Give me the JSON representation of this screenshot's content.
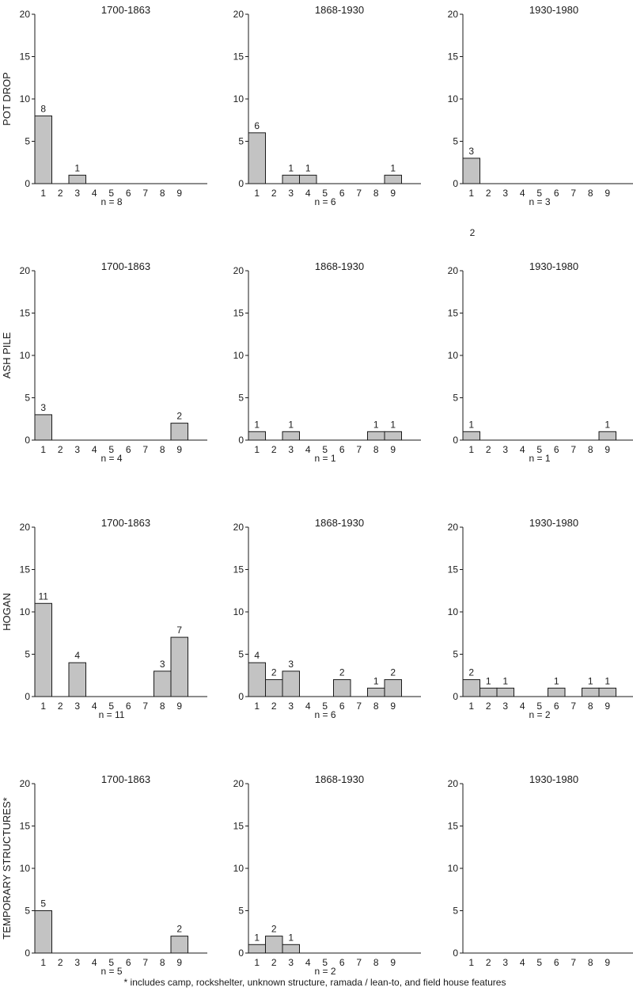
{
  "footnote": "* includes camp, rockshelter, unknown structure, ramada / lean-to, and field house features",
  "stray_label": "2",
  "colors": {
    "bar_fill": "#c3c3c3",
    "ink": "#1a1a1a"
  },
  "chart_data": [
    {
      "row_label": "POT DROP",
      "panels": [
        {
          "type": "bar",
          "title": "1700-1863",
          "categories": [
            "1",
            "2",
            "3",
            "4",
            "5",
            "6",
            "7",
            "8",
            "9"
          ],
          "values": [
            8,
            0,
            1,
            0,
            0,
            0,
            0,
            0,
            0
          ],
          "bar_labels": [
            "8",
            "",
            "1",
            "",
            "",
            "",
            "",
            "",
            ""
          ],
          "n_label": "n = 8",
          "ylim": [
            0,
            20
          ],
          "yticks": [
            0,
            5,
            10,
            15,
            20
          ]
        },
        {
          "type": "bar",
          "title": "1868-1930",
          "categories": [
            "1",
            "2",
            "3",
            "4",
            "5",
            "6",
            "7",
            "8",
            "9"
          ],
          "values": [
            6,
            0,
            1,
            1,
            0,
            0,
            0,
            0,
            1
          ],
          "bar_labels": [
            "6",
            "",
            "1",
            "1",
            "",
            "",
            "",
            "",
            "1"
          ],
          "n_label": "n = 6",
          "ylim": [
            0,
            20
          ],
          "yticks": [
            0,
            5,
            10,
            15,
            20
          ]
        },
        {
          "type": "bar",
          "title": "1930-1980",
          "categories": [
            "1",
            "2",
            "3",
            "4",
            "5",
            "6",
            "7",
            "8",
            "9"
          ],
          "values": [
            3,
            0,
            0,
            0,
            0,
            0,
            0,
            0,
            0
          ],
          "bar_labels": [
            "3",
            "",
            "",
            "",
            "",
            "",
            "",
            "",
            ""
          ],
          "n_label": "n = 3",
          "ylim": [
            0,
            20
          ],
          "yticks": [
            0,
            5,
            10,
            15,
            20
          ]
        }
      ]
    },
    {
      "row_label": "ASH  PILE",
      "panels": [
        {
          "type": "bar",
          "title": "1700-1863",
          "categories": [
            "1",
            "2",
            "3",
            "4",
            "5",
            "6",
            "7",
            "8",
            "9"
          ],
          "values": [
            3,
            0,
            0,
            0,
            0,
            0,
            0,
            0,
            2
          ],
          "bar_labels": [
            "3",
            "",
            "",
            "",
            "",
            "",
            "",
            "",
            "2"
          ],
          "n_label": "n = 4",
          "ylim": [
            0,
            20
          ],
          "yticks": [
            0,
            5,
            10,
            15,
            20
          ]
        },
        {
          "type": "bar",
          "title": "1868-1930",
          "categories": [
            "1",
            "2",
            "3",
            "4",
            "5",
            "6",
            "7",
            "8",
            "9"
          ],
          "values": [
            1,
            0,
            1,
            0,
            0,
            0,
            0,
            1,
            1
          ],
          "bar_labels": [
            "1",
            "",
            "1",
            "",
            "",
            "",
            "",
            "1",
            "1"
          ],
          "n_label": "n = 1",
          "ylim": [
            0,
            20
          ],
          "yticks": [
            0,
            5,
            10,
            15,
            20
          ]
        },
        {
          "type": "bar",
          "title": "1930-1980",
          "categories": [
            "1",
            "2",
            "3",
            "4",
            "5",
            "6",
            "7",
            "8",
            "9"
          ],
          "values": [
            1,
            0,
            0,
            0,
            0,
            0,
            0,
            0,
            1
          ],
          "bar_labels": [
            "1",
            "",
            "",
            "",
            "",
            "",
            "",
            "",
            "1"
          ],
          "n_label": "n = 1",
          "ylim": [
            0,
            20
          ],
          "yticks": [
            0,
            5,
            10,
            15,
            20
          ]
        }
      ]
    },
    {
      "row_label": "HOGAN",
      "panels": [
        {
          "type": "bar",
          "title": "1700-1863",
          "categories": [
            "1",
            "2",
            "3",
            "4",
            "5",
            "6",
            "7",
            "8",
            "9"
          ],
          "values": [
            11,
            0,
            4,
            0,
            0,
            0,
            0,
            3,
            7
          ],
          "bar_labels": [
            "11",
            "",
            "4",
            "",
            "",
            "",
            "",
            "3",
            "7"
          ],
          "n_label": "n = 11",
          "ylim": [
            0,
            20
          ],
          "yticks": [
            0,
            5,
            10,
            15,
            20
          ]
        },
        {
          "type": "bar",
          "title": "1868-1930",
          "categories": [
            "1",
            "2",
            "3",
            "4",
            "5",
            "6",
            "7",
            "8",
            "9"
          ],
          "values": [
            4,
            2,
            3,
            0,
            0,
            2,
            0,
            1,
            2
          ],
          "bar_labels": [
            "4",
            "2",
            "3",
            "",
            "",
            "2",
            "",
            "1",
            "2"
          ],
          "n_label": "n = 6",
          "ylim": [
            0,
            20
          ],
          "yticks": [
            0,
            5,
            10,
            15,
            20
          ]
        },
        {
          "type": "bar",
          "title": "1930-1980",
          "categories": [
            "1",
            "2",
            "3",
            "4",
            "5",
            "6",
            "7",
            "8",
            "9"
          ],
          "values": [
            2,
            1,
            1,
            0,
            0,
            1,
            0,
            1,
            1
          ],
          "bar_labels": [
            "2",
            "1",
            "1",
            "",
            "",
            "1",
            "",
            "1",
            "1"
          ],
          "n_label": "n = 2",
          "ylim": [
            0,
            20
          ],
          "yticks": [
            0,
            5,
            10,
            15,
            20
          ]
        }
      ]
    },
    {
      "row_label": "TEMPORARY STRUCTURES*",
      "panels": [
        {
          "type": "bar",
          "title": "1700-1863",
          "categories": [
            "1",
            "2",
            "3",
            "4",
            "5",
            "6",
            "7",
            "8",
            "9"
          ],
          "values": [
            5,
            0,
            0,
            0,
            0,
            0,
            0,
            0,
            2
          ],
          "bar_labels": [
            "5",
            "",
            "",
            "",
            "",
            "",
            "",
            "",
            "2"
          ],
          "n_label": "n = 5",
          "ylim": [
            0,
            20
          ],
          "yticks": [
            0,
            5,
            10,
            15,
            20
          ]
        },
        {
          "type": "bar",
          "title": "1868-1930",
          "categories": [
            "1",
            "2",
            "3",
            "4",
            "5",
            "6",
            "7",
            "8",
            "9"
          ],
          "values": [
            1,
            2,
            1,
            0,
            0,
            0,
            0,
            0,
            0
          ],
          "bar_labels": [
            "1",
            "2",
            "1",
            "",
            "",
            "",
            "",
            "",
            ""
          ],
          "n_label": "n = 2",
          "ylim": [
            0,
            20
          ],
          "yticks": [
            0,
            5,
            10,
            15,
            20
          ]
        },
        {
          "type": "bar",
          "title": "1930-1980",
          "categories": [
            "1",
            "2",
            "3",
            "4",
            "5",
            "6",
            "7",
            "8",
            "9"
          ],
          "values": [
            0,
            0,
            0,
            0,
            0,
            0,
            0,
            0,
            0
          ],
          "bar_labels": [
            "",
            "",
            "",
            "",
            "",
            "",
            "",
            "",
            ""
          ],
          "n_label": "",
          "ylim": [
            0,
            20
          ],
          "yticks": [
            0,
            5,
            10,
            15,
            20
          ]
        }
      ]
    }
  ]
}
